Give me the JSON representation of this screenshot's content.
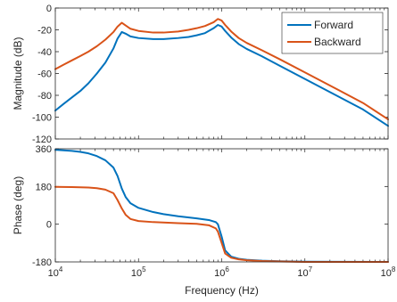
{
  "chart_data": [
    {
      "type": "line",
      "title": "",
      "xlabel": "",
      "ylabel": "Magnitude (dB)",
      "xscale": "log",
      "xlim": [
        10000,
        100000000
      ],
      "ylim": [
        -120,
        0
      ],
      "yticks": [
        0,
        -20,
        -40,
        -60,
        -80,
        -100,
        -120
      ],
      "grid": false,
      "legend": "top-right",
      "series": [
        {
          "name": "Forward",
          "color": "#0072BD",
          "points": [
            [
              10000,
              -94
            ],
            [
              12500,
              -88
            ],
            [
              15800,
              -82
            ],
            [
              20000,
              -76
            ],
            [
              25000,
              -69
            ],
            [
              31600,
              -60
            ],
            [
              40000,
              -50
            ],
            [
              50000,
              -37
            ],
            [
              56000,
              -28
            ],
            [
              63000,
              -22
            ],
            [
              70000,
              -23.5
            ],
            [
              80000,
              -26
            ],
            [
              100000,
              -27.5
            ],
            [
              150000,
              -28.5
            ],
            [
              200000,
              -28.5
            ],
            [
              300000,
              -27.5
            ],
            [
              400000,
              -26.5
            ],
            [
              500000,
              -25
            ],
            [
              630000,
              -23
            ],
            [
              800000,
              -18.5
            ],
            [
              900000,
              -15.5
            ],
            [
              1000000,
              -17
            ],
            [
              1100000,
              -21
            ],
            [
              1300000,
              -27
            ],
            [
              1600000,
              -33
            ],
            [
              2000000,
              -37.5
            ],
            [
              3000000,
              -44
            ],
            [
              5000000,
              -53
            ],
            [
              10000000,
              -65
            ],
            [
              20000000,
              -77
            ],
            [
              50000000,
              -93
            ],
            [
              100000000,
              -108
            ]
          ]
        },
        {
          "name": "Backward",
          "color": "#D95319",
          "points": [
            [
              10000,
              -56
            ],
            [
              12500,
              -52
            ],
            [
              15800,
              -48
            ],
            [
              20000,
              -44
            ],
            [
              25000,
              -40
            ],
            [
              31600,
              -35
            ],
            [
              40000,
              -29
            ],
            [
              50000,
              -22
            ],
            [
              56000,
              -17
            ],
            [
              63000,
              -13.5
            ],
            [
              70000,
              -16
            ],
            [
              80000,
              -19
            ],
            [
              100000,
              -21
            ],
            [
              150000,
              -22.5
            ],
            [
              200000,
              -22.5
            ],
            [
              300000,
              -21.5
            ],
            [
              400000,
              -20
            ],
            [
              500000,
              -18.5
            ],
            [
              630000,
              -16.5
            ],
            [
              800000,
              -13
            ],
            [
              900000,
              -10
            ],
            [
              1000000,
              -11.5
            ],
            [
              1100000,
              -15.5
            ],
            [
              1300000,
              -21.5
            ],
            [
              1600000,
              -27.5
            ],
            [
              2000000,
              -32
            ],
            [
              3000000,
              -38.5
            ],
            [
              5000000,
              -47
            ],
            [
              10000000,
              -59
            ],
            [
              20000000,
              -71
            ],
            [
              50000000,
              -87
            ],
            [
              100000000,
              -102
            ]
          ]
        }
      ]
    },
    {
      "type": "line",
      "title": "",
      "xlabel": "Frequency  (Hz)",
      "ylabel": "Phase (deg)",
      "xscale": "log",
      "xlim": [
        10000,
        100000000
      ],
      "ylim": [
        -180,
        360
      ],
      "yticks": [
        360,
        180,
        0,
        -180
      ],
      "xticks": [
        {
          "value": 10000,
          "base": "10",
          "exp": "4"
        },
        {
          "value": 100000,
          "base": "10",
          "exp": "5"
        },
        {
          "value": 1000000,
          "base": "10",
          "exp": "6"
        },
        {
          "value": 10000000,
          "base": "10",
          "exp": "7"
        },
        {
          "value": 100000000,
          "base": "10",
          "exp": "8"
        }
      ],
      "grid": false,
      "series": [
        {
          "name": "Forward",
          "color": "#0072BD",
          "points": [
            [
              10000,
              355
            ],
            [
              15800,
              350
            ],
            [
              20000,
              345
            ],
            [
              25000,
              338
            ],
            [
              31600,
              325
            ],
            [
              40000,
              305
            ],
            [
              50000,
              270
            ],
            [
              56000,
              230
            ],
            [
              63000,
              170
            ],
            [
              70000,
              130
            ],
            [
              80000,
              100
            ],
            [
              100000,
              78
            ],
            [
              150000,
              58
            ],
            [
              200000,
              48
            ],
            [
              300000,
              38
            ],
            [
              500000,
              28
            ],
            [
              700000,
              20
            ],
            [
              850000,
              10
            ],
            [
              900000,
              0
            ],
            [
              1000000,
              -60
            ],
            [
              1100000,
              -125
            ],
            [
              1300000,
              -155
            ],
            [
              1600000,
              -165
            ],
            [
              2000000,
              -170
            ],
            [
              3000000,
              -174
            ],
            [
              5000000,
              -177
            ],
            [
              10000000,
              -179
            ],
            [
              100000000,
              -180
            ]
          ]
        },
        {
          "name": "Backward",
          "color": "#D95319",
          "points": [
            [
              10000,
              178
            ],
            [
              15800,
              177
            ],
            [
              20000,
              176
            ],
            [
              25000,
              175
            ],
            [
              31600,
              172
            ],
            [
              40000,
              165
            ],
            [
              50000,
              148
            ],
            [
              56000,
              115
            ],
            [
              63000,
              75
            ],
            [
              70000,
              45
            ],
            [
              80000,
              25
            ],
            [
              100000,
              15
            ],
            [
              150000,
              10
            ],
            [
              300000,
              5
            ],
            [
              500000,
              2
            ],
            [
              700000,
              -5
            ],
            [
              850000,
              -20
            ],
            [
              900000,
              -35
            ],
            [
              1000000,
              -90
            ],
            [
              1100000,
              -140
            ],
            [
              1300000,
              -160
            ],
            [
              1600000,
              -168
            ],
            [
              2000000,
              -172
            ],
            [
              3000000,
              -176
            ],
            [
              5000000,
              -178
            ],
            [
              10000000,
              -180
            ],
            [
              100000000,
              -180
            ]
          ]
        }
      ]
    }
  ]
}
